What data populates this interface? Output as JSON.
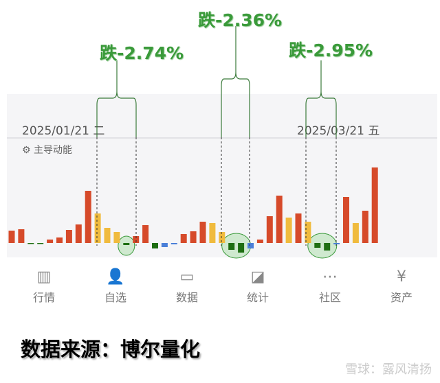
{
  "header": {
    "date_left": "2025/01/21 二",
    "date_right": "2025/03/21 五",
    "indicator": "主导动能",
    "indicator_icon": "gear-icon"
  },
  "annotations": [
    {
      "label": "跌-2.74%"
    },
    {
      "label": "跌-2.36%"
    },
    {
      "label": "跌-2.95%"
    }
  ],
  "chart_data": {
    "type": "bar",
    "values": [
      18,
      20,
      -1,
      -1,
      5,
      8,
      19,
      27,
      76,
      43,
      22,
      16,
      -3,
      10,
      26,
      -8,
      -6,
      -2,
      13,
      17,
      31,
      29,
      16,
      -10,
      -14,
      -8,
      5,
      39,
      69,
      37,
      43,
      31,
      -7,
      -11,
      -2,
      67,
      29,
      47,
      110
    ],
    "colors": [
      "red",
      "red",
      "green",
      "green",
      "red",
      "red",
      "red",
      "red",
      "red",
      "yellow",
      "yellow",
      "yellow",
      "green",
      "red",
      "red",
      "green",
      "blue",
      "blue",
      "red",
      "red",
      "red",
      "yellow",
      "yellow",
      "green",
      "green",
      "blue",
      "red",
      "red",
      "red",
      "yellow",
      "red",
      "yellow",
      "green",
      "green",
      "blue",
      "red",
      "yellow",
      "red",
      "red"
    ],
    "palette": {
      "red": "#d64a2a",
      "yellow": "#f0bb3e",
      "green": "#1e6e12",
      "blue": "#4a7fd8"
    },
    "highlighted_indices": [
      [
        12
      ],
      [
        23,
        24
      ],
      [
        32,
        33
      ]
    ],
    "highlight_color": "#cfe9cf",
    "annotation_color": "#3a9a3a"
  },
  "nav": [
    {
      "label": "行情",
      "icon": "bar-chart-icon"
    },
    {
      "label": "自选",
      "icon": "user-add-icon"
    },
    {
      "label": "数据",
      "icon": "monitor-chart-icon"
    },
    {
      "label": "统计",
      "icon": "line-chart-icon"
    },
    {
      "label": "社区",
      "icon": "chat-icon"
    },
    {
      "label": "资产",
      "icon": "yen-shield-icon"
    }
  ],
  "footer": {
    "source": "数据来源：博尔量化",
    "watermark": "雪球：露风清扬"
  }
}
